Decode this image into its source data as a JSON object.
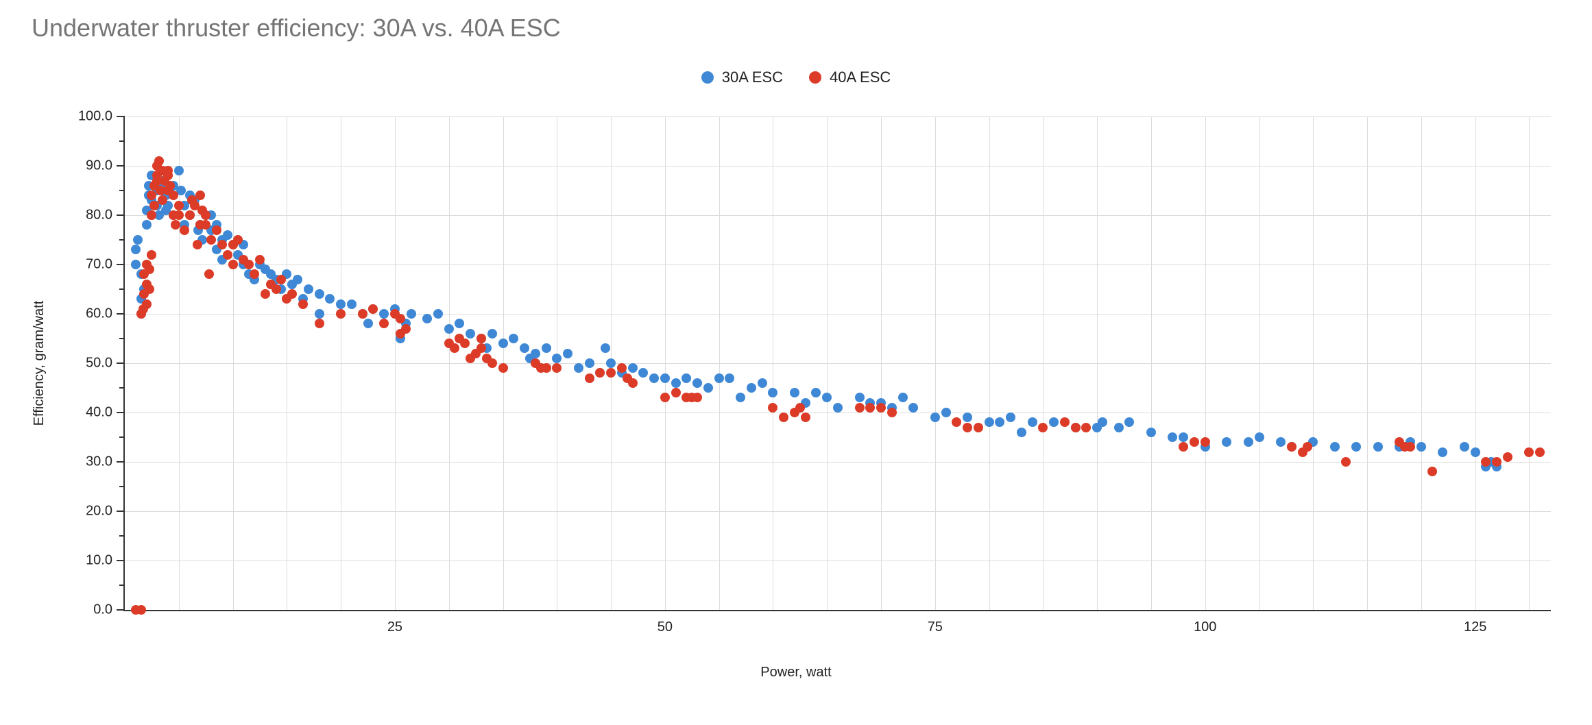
{
  "chart": {
    "type": "scatter",
    "title": "Underwater thruster efficiency: 30A vs. 40A ESC",
    "title_color": "#757575",
    "title_fontsize": 36,
    "background_color": "#ffffff",
    "grid_color": "#dcdcdc",
    "axis_color": "#333333",
    "tick_font_color": "#222222",
    "tick_fontsize": 20,
    "marker_radius": 7,
    "x_axis": {
      "label": "Power, watt",
      "min": 0,
      "max": 132,
      "major_ticks": [
        25,
        50,
        75,
        100,
        125
      ],
      "minor_grid_step": 5,
      "grid_start": 5
    },
    "y_axis": {
      "label": "Efficiency, gram/watt",
      "min": 0,
      "max": 100,
      "major_ticks": [
        0,
        10,
        20,
        30,
        40,
        50,
        60,
        70,
        80,
        90,
        100
      ],
      "minor_ticks_between": 1
    },
    "legend": {
      "position": "top-center",
      "fontsize": 22,
      "items": [
        {
          "label": "30A ESC",
          "color": "#3e88d6"
        },
        {
          "label": "40A ESC",
          "color": "#dc3b28"
        }
      ]
    },
    "series": [
      {
        "name": "30A ESC",
        "color": "#3e88d6",
        "points": [
          [
            1.0,
            70
          ],
          [
            1.0,
            73
          ],
          [
            1.2,
            75
          ],
          [
            1.5,
            60
          ],
          [
            1.5,
            63
          ],
          [
            1.5,
            68
          ],
          [
            1.8,
            65
          ],
          [
            2.0,
            78
          ],
          [
            2.0,
            81
          ],
          [
            2.2,
            84
          ],
          [
            2.2,
            86
          ],
          [
            2.5,
            88
          ],
          [
            2.5,
            83
          ],
          [
            2.5,
            80
          ],
          [
            3.0,
            85
          ],
          [
            3.0,
            82
          ],
          [
            3.2,
            80
          ],
          [
            3.5,
            87
          ],
          [
            3.5,
            86
          ],
          [
            3.8,
            84
          ],
          [
            3.8,
            81
          ],
          [
            4.0,
            88
          ],
          [
            4.0,
            82
          ],
          [
            4.5,
            80
          ],
          [
            4.5,
            86
          ],
          [
            5.0,
            89
          ],
          [
            5.2,
            85
          ],
          [
            5.5,
            82
          ],
          [
            5.5,
            78
          ],
          [
            6.0,
            80
          ],
          [
            6.0,
            84
          ],
          [
            6.5,
            83
          ],
          [
            6.8,
            77
          ],
          [
            7.0,
            78
          ],
          [
            7.2,
            75
          ],
          [
            7.5,
            80
          ],
          [
            8.0,
            77
          ],
          [
            8.0,
            80
          ],
          [
            8.5,
            78
          ],
          [
            8.5,
            73
          ],
          [
            9.0,
            75
          ],
          [
            9.0,
            71
          ],
          [
            9.5,
            76
          ],
          [
            10.0,
            74
          ],
          [
            10.5,
            72
          ],
          [
            11.0,
            74
          ],
          [
            11.0,
            70
          ],
          [
            11.5,
            68
          ],
          [
            12.0,
            67
          ],
          [
            12.5,
            70
          ],
          [
            13.0,
            69
          ],
          [
            13.5,
            68
          ],
          [
            14.0,
            67
          ],
          [
            14.5,
            65
          ],
          [
            15.0,
            68
          ],
          [
            15.5,
            66
          ],
          [
            16.0,
            67
          ],
          [
            16.5,
            63
          ],
          [
            17.0,
            65
          ],
          [
            18.0,
            64
          ],
          [
            18.0,
            60
          ],
          [
            19.0,
            63
          ],
          [
            20.0,
            62
          ],
          [
            21.0,
            62
          ],
          [
            22.0,
            60
          ],
          [
            22.5,
            58
          ],
          [
            23.0,
            61
          ],
          [
            24.0,
            60
          ],
          [
            25.0,
            61
          ],
          [
            25.5,
            55
          ],
          [
            26.0,
            58
          ],
          [
            26.5,
            60
          ],
          [
            28.0,
            59
          ],
          [
            29.0,
            60
          ],
          [
            30.0,
            57
          ],
          [
            31.0,
            58
          ],
          [
            32.0,
            56
          ],
          [
            33.0,
            55
          ],
          [
            33.5,
            53
          ],
          [
            34.0,
            56
          ],
          [
            35.0,
            54
          ],
          [
            36.0,
            55
          ],
          [
            37.0,
            53
          ],
          [
            37.5,
            51
          ],
          [
            38.0,
            52
          ],
          [
            39.0,
            53
          ],
          [
            40.0,
            51
          ],
          [
            41.0,
            52
          ],
          [
            42.0,
            49
          ],
          [
            43.0,
            50
          ],
          [
            44.0,
            48
          ],
          [
            44.5,
            53
          ],
          [
            45.0,
            50
          ],
          [
            46.0,
            48
          ],
          [
            47.0,
            49
          ],
          [
            48.0,
            48
          ],
          [
            49.0,
            47
          ],
          [
            50.0,
            47
          ],
          [
            51.0,
            46
          ],
          [
            52.0,
            47
          ],
          [
            53.0,
            46
          ],
          [
            54.0,
            45
          ],
          [
            55.0,
            47
          ],
          [
            56.0,
            47
          ],
          [
            57.0,
            43
          ],
          [
            58.0,
            45
          ],
          [
            59.0,
            46
          ],
          [
            60.0,
            44
          ],
          [
            62.0,
            44
          ],
          [
            63.0,
            42
          ],
          [
            64.0,
            44
          ],
          [
            65.0,
            43
          ],
          [
            66.0,
            41
          ],
          [
            68.0,
            43
          ],
          [
            69.0,
            42
          ],
          [
            70.0,
            42
          ],
          [
            71.0,
            41
          ],
          [
            72.0,
            43
          ],
          [
            73.0,
            41
          ],
          [
            75.0,
            39
          ],
          [
            76.0,
            40
          ],
          [
            78.0,
            39
          ],
          [
            80.0,
            38
          ],
          [
            81.0,
            38
          ],
          [
            82.0,
            39
          ],
          [
            83.0,
            36
          ],
          [
            84.0,
            38
          ],
          [
            86.0,
            38
          ],
          [
            88.0,
            37
          ],
          [
            90.0,
            37
          ],
          [
            90.5,
            38
          ],
          [
            92.0,
            37
          ],
          [
            93.0,
            38
          ],
          [
            95.0,
            36
          ],
          [
            97.0,
            35
          ],
          [
            98.0,
            35
          ],
          [
            100.0,
            33
          ],
          [
            102.0,
            34
          ],
          [
            104.0,
            34
          ],
          [
            105.0,
            35
          ],
          [
            107.0,
            34
          ],
          [
            108.0,
            33
          ],
          [
            110.0,
            34
          ],
          [
            112.0,
            33
          ],
          [
            114.0,
            33
          ],
          [
            116.0,
            33
          ],
          [
            118.0,
            33
          ],
          [
            119.0,
            34
          ],
          [
            120.0,
            33
          ],
          [
            122.0,
            32
          ],
          [
            124.0,
            33
          ],
          [
            125.0,
            32
          ],
          [
            126.0,
            29
          ],
          [
            126.5,
            30
          ],
          [
            127.0,
            29
          ]
        ]
      },
      {
        "name": "40A ESC",
        "color": "#dc3b28",
        "points": [
          [
            1.0,
            0
          ],
          [
            1.5,
            0
          ],
          [
            1.5,
            60
          ],
          [
            1.7,
            61
          ],
          [
            1.8,
            64
          ],
          [
            1.8,
            68
          ],
          [
            2.0,
            62
          ],
          [
            2.0,
            66
          ],
          [
            2.0,
            70
          ],
          [
            2.3,
            65
          ],
          [
            2.3,
            69
          ],
          [
            2.5,
            72
          ],
          [
            2.5,
            80
          ],
          [
            2.5,
            84
          ],
          [
            2.7,
            86
          ],
          [
            2.7,
            82
          ],
          [
            3.0,
            87
          ],
          [
            3.0,
            88
          ],
          [
            3.0,
            90
          ],
          [
            3.2,
            91
          ],
          [
            3.3,
            85
          ],
          [
            3.5,
            89
          ],
          [
            3.5,
            83
          ],
          [
            3.7,
            87
          ],
          [
            4.0,
            85
          ],
          [
            4.0,
            88
          ],
          [
            4.0,
            89
          ],
          [
            4.2,
            86
          ],
          [
            4.5,
            84
          ],
          [
            4.5,
            80
          ],
          [
            4.7,
            78
          ],
          [
            5.0,
            82
          ],
          [
            5.0,
            80
          ],
          [
            5.5,
            77
          ],
          [
            6.0,
            80
          ],
          [
            6.2,
            83
          ],
          [
            6.5,
            82
          ],
          [
            6.7,
            74
          ],
          [
            7.0,
            78
          ],
          [
            7.0,
            84
          ],
          [
            7.2,
            81
          ],
          [
            7.5,
            78
          ],
          [
            7.5,
            80
          ],
          [
            7.8,
            68
          ],
          [
            8.0,
            75
          ],
          [
            8.5,
            77
          ],
          [
            9.0,
            74
          ],
          [
            9.5,
            72
          ],
          [
            10.0,
            74
          ],
          [
            10.0,
            70
          ],
          [
            10.5,
            75
          ],
          [
            11.0,
            71
          ],
          [
            11.5,
            70
          ],
          [
            12.0,
            68
          ],
          [
            12.5,
            71
          ],
          [
            13.0,
            64
          ],
          [
            13.5,
            66
          ],
          [
            14.0,
            65
          ],
          [
            14.5,
            67
          ],
          [
            15.0,
            63
          ],
          [
            15.5,
            64
          ],
          [
            16.5,
            62
          ],
          [
            18.0,
            58
          ],
          [
            20.0,
            60
          ],
          [
            22.0,
            60
          ],
          [
            23.0,
            61
          ],
          [
            24.0,
            58
          ],
          [
            25.0,
            60
          ],
          [
            25.5,
            59
          ],
          [
            25.5,
            56
          ],
          [
            26.0,
            57
          ],
          [
            30.0,
            54
          ],
          [
            30.5,
            53
          ],
          [
            31.0,
            55
          ],
          [
            31.5,
            54
          ],
          [
            32.0,
            51
          ],
          [
            32.5,
            52
          ],
          [
            33.0,
            55
          ],
          [
            33.0,
            53
          ],
          [
            33.5,
            51
          ],
          [
            34.0,
            50
          ],
          [
            35.0,
            49
          ],
          [
            38.0,
            50
          ],
          [
            38.5,
            49
          ],
          [
            39.0,
            49
          ],
          [
            40.0,
            49
          ],
          [
            43.0,
            47
          ],
          [
            44.0,
            48
          ],
          [
            45.0,
            48
          ],
          [
            46.0,
            49
          ],
          [
            46.5,
            47
          ],
          [
            47.0,
            46
          ],
          [
            50.0,
            43
          ],
          [
            51.0,
            44
          ],
          [
            52.0,
            43
          ],
          [
            52.5,
            43
          ],
          [
            53.0,
            43
          ],
          [
            60.0,
            41
          ],
          [
            61.0,
            39
          ],
          [
            62.0,
            40
          ],
          [
            62.5,
            41
          ],
          [
            63.0,
            39
          ],
          [
            68.0,
            41
          ],
          [
            69.0,
            41
          ],
          [
            70.0,
            41
          ],
          [
            71.0,
            40
          ],
          [
            77.0,
            38
          ],
          [
            78.0,
            37
          ],
          [
            79.0,
            37
          ],
          [
            85.0,
            37
          ],
          [
            87.0,
            38
          ],
          [
            88.0,
            37
          ],
          [
            89.0,
            37
          ],
          [
            98.0,
            33
          ],
          [
            99.0,
            34
          ],
          [
            100.0,
            34
          ],
          [
            108.0,
            33
          ],
          [
            109.0,
            32
          ],
          [
            109.5,
            33
          ],
          [
            113.0,
            30
          ],
          [
            118.0,
            34
          ],
          [
            118.5,
            33
          ],
          [
            119.0,
            33
          ],
          [
            121.0,
            28
          ],
          [
            126.0,
            30
          ],
          [
            127.0,
            30
          ],
          [
            128.0,
            31
          ],
          [
            130.0,
            32
          ],
          [
            131.0,
            32
          ]
        ]
      }
    ]
  }
}
